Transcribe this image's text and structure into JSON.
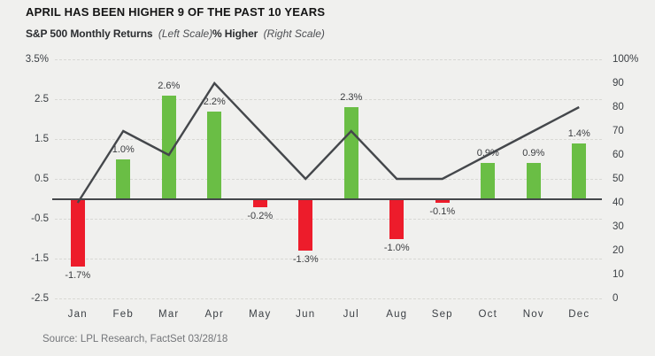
{
  "title": "APRIL HAS BEEN HIGHER 9 OF THE PAST 10 YEARS",
  "legend": {
    "left_label": "S&P 500 Monthly Returns",
    "left_scale_note": "(Left Scale)",
    "right_label": "% Higher",
    "right_scale_note": "(Right Scale)"
  },
  "source": "Source: LPL Research, FactSet 03/28/18",
  "colors": {
    "positive_bar": "#6abe45",
    "negative_bar": "#ed1c2b",
    "line": "#44474b",
    "zero_line": "#44474b",
    "background": "#f0f0ee",
    "gridline": "#d8d8d4",
    "axis_text": "#3c4045",
    "bar_label_text": "#3a3c3f",
    "source_text": "#74767a"
  },
  "chart_data": {
    "type": "bar",
    "categories": [
      "Jan",
      "Feb",
      "Mar",
      "Apr",
      "May",
      "Jun",
      "Jul",
      "Aug",
      "Sep",
      "Oct",
      "Nov",
      "Dec"
    ],
    "series": [
      {
        "name": "S&P 500 Monthly Returns",
        "type": "bar",
        "axis": "left",
        "values": [
          -1.7,
          1.0,
          2.6,
          2.2,
          -0.2,
          -1.3,
          2.3,
          -1.0,
          -0.1,
          0.9,
          0.9,
          1.4
        ],
        "labels": [
          "-1.7%",
          "1.0%",
          "2.6%",
          "2.2%",
          "-0.2%",
          "-1.3%",
          "2.3%",
          "-1.0%",
          "-0.1%",
          "0.9%",
          "0.9%",
          "1.4%"
        ]
      },
      {
        "name": "% Higher",
        "type": "line",
        "axis": "right",
        "values": [
          40,
          70,
          60,
          90,
          70,
          50,
          70,
          50,
          50,
          60,
          70,
          80
        ]
      }
    ],
    "left_axis": {
      "tick_labels": [
        "3.5%",
        "2.5",
        "1.5",
        "0.5",
        "-0.5",
        "-1.5",
        "-2.5"
      ],
      "min": -2.5,
      "max": 3.5
    },
    "right_axis": {
      "tick_labels": [
        "100%",
        "90",
        "80",
        "70",
        "60",
        "50",
        "40",
        "30",
        "20",
        "10",
        "0"
      ],
      "min": 0,
      "max": 100
    },
    "grid": "horizontal-dashed",
    "legend_position": "top-left"
  }
}
